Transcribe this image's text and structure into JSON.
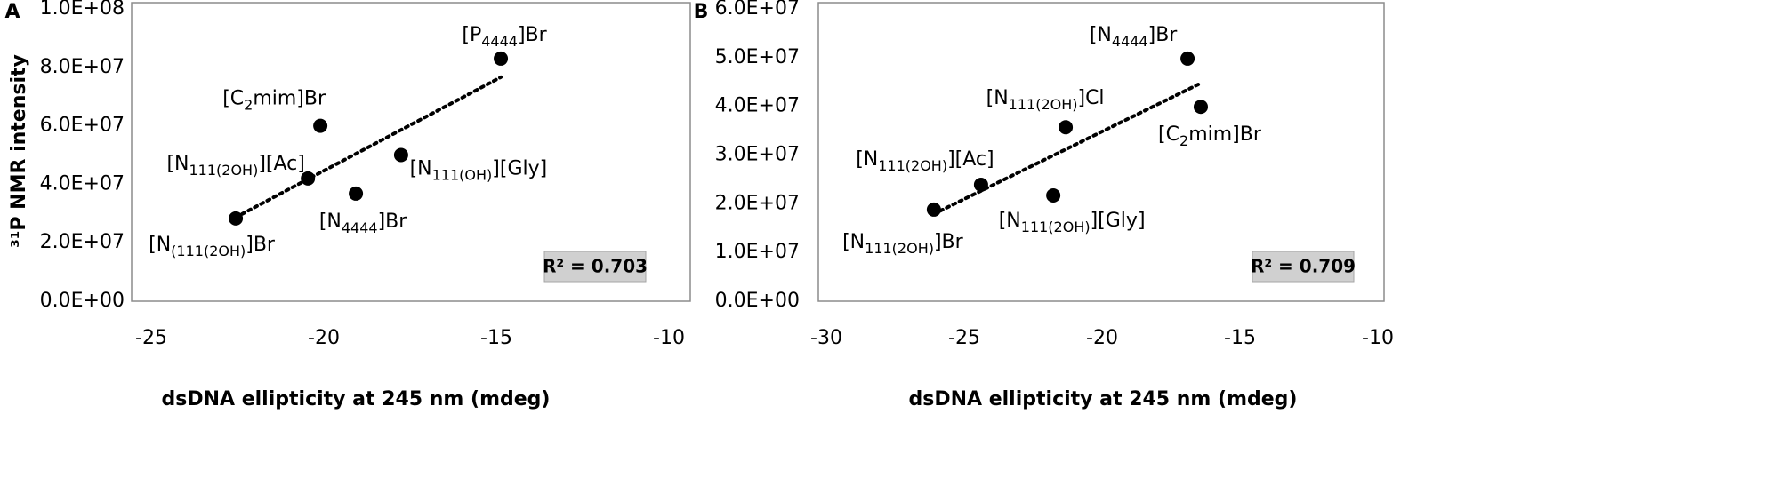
{
  "chart_data": [
    {
      "type": "scatter",
      "panel_label": "A",
      "color": "#000000",
      "trendline": "linear",
      "x_label": "dsDNA ellipticity at 245 nm (mdeg)",
      "y_label": "³¹P NMR intensity",
      "annotation": "R² = 0.703",
      "x": [
        -14.87,
        -20.1,
        -20.46,
        -17.76,
        -19.07,
        -22.55
      ],
      "y": [
        83000000,
        60000000,
        42000000,
        50000000,
        36800000,
        28300000
      ],
      "point_labels": [
        "[P4444]Br",
        "[C2mim]Br",
        "[N111(2OH)][Ac]",
        "[N111(OH)][Gly]",
        "[N4444]Br",
        "[N(111(2OH)]Br"
      ],
      "xlim": [
        -25,
        -10
      ],
      "xticks": [
        -25,
        -20,
        -15,
        -10
      ],
      "ylim": [
        0,
        100000000
      ],
      "yticks": [
        {
          "value": 0,
          "label": "0.0E+00"
        },
        {
          "value": 20000000,
          "label": "2.0E+07"
        },
        {
          "value": 40000000,
          "label": "4.0E+07"
        },
        {
          "value": 60000000,
          "label": "6.0E+07"
        },
        {
          "value": 80000000,
          "label": "8.0E+07"
        },
        {
          "value": 100000000,
          "label": "1.0E+08"
        }
      ]
    },
    {
      "type": "scatter",
      "panel_label": "B",
      "color": "#000000",
      "trendline": "linear",
      "x_label": "dsDNA ellipticity at 245 nm (mdeg)",
      "annotation": "R² = 0.709",
      "x": [
        -16.9,
        -16.42,
        -21.32,
        -24.39,
        -21.77,
        -26.1
      ],
      "y": [
        49800000,
        39900000,
        35700000,
        23900000,
        21700000,
        18800000
      ],
      "point_labels": [
        "[N4444]Br",
        "[C2mim]Br",
        "[N111(2OH)]Cl",
        "[N111(2OH)][Ac]",
        "[N111(2OH)][Gly]",
        "[N111(2OH)]Br"
      ],
      "xlim": [
        -30,
        -10
      ],
      "xticks": [
        -30,
        -25,
        -20,
        -15,
        -10
      ],
      "ylim": [
        0,
        60000000
      ],
      "yticks": [
        {
          "value": 0,
          "label": "0.0E+00"
        },
        {
          "value": 10000000,
          "label": "1.0E+07"
        },
        {
          "value": 20000000,
          "label": "2.0E+07"
        },
        {
          "value": 30000000,
          "label": "3.0E+07"
        },
        {
          "value": 40000000,
          "label": "4.0E+07"
        },
        {
          "value": 50000000,
          "label": "5.0E+07"
        },
        {
          "value": 60000000,
          "label": "6.0E+07"
        }
      ]
    }
  ]
}
